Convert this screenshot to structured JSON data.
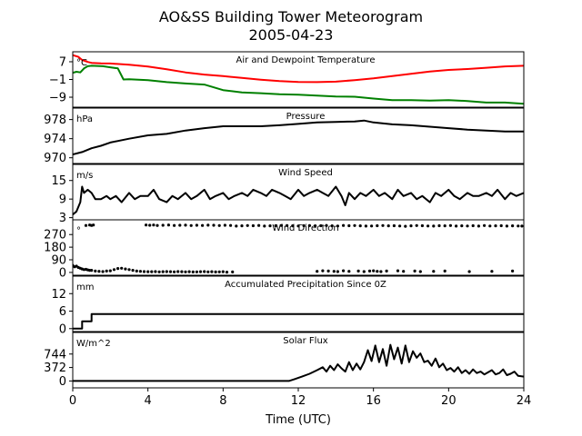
{
  "chart_data": {
    "type": "line",
    "title": "AO&SS Building Tower Meteorogram",
    "subtitle": "2005-04-23",
    "xlabel": "Time (UTC)",
    "xlim": [
      0,
      24
    ],
    "xticks": [
      0,
      4,
      8,
      12,
      16,
      20,
      24
    ],
    "panels": [
      {
        "id": "temp",
        "title": "Air and Dewpoint Temperature",
        "unit": "°C",
        "ylim": [
          -13.5,
          11.5
        ],
        "yticks": [
          7,
          -1,
          -9
        ],
        "yticklabels": [
          "7",
          "−1",
          "−9"
        ],
        "series": [
          {
            "color": "#ff0000",
            "x": [
              0,
              0.3,
              0.5,
              0.8,
              1.0,
              1.5,
              2.0,
              3.0,
              4.0,
              5.0,
              6.0,
              7.0,
              8.0,
              9.0,
              10.0,
              11.0,
              12.0,
              13.0,
              14.0,
              15.0,
              16.0,
              17.0,
              18.0,
              19.0,
              20.0,
              21.0,
              22.0,
              23.0,
              24.0
            ],
            "values": [
              10,
              9.2,
              7.8,
              6.9,
              6.5,
              6.3,
              6.2,
              5.7,
              4.8,
              3.6,
              2.2,
              1.2,
              0.5,
              -0.3,
              -1.1,
              -1.7,
              -2.1,
              -2.2,
              -2.0,
              -1.3,
              -0.5,
              0.5,
              1.6,
              2.6,
              3.3,
              3.7,
              4.3,
              4.9,
              5.2
            ]
          },
          {
            "color": "#008000",
            "x": [
              0,
              0.2,
              0.4,
              0.6,
              0.8,
              1.0,
              1.3,
              1.6,
              2.0,
              2.4,
              2.7,
              3.0,
              4.0,
              5.0,
              6.0,
              7.0,
              8.0,
              9.0,
              10.0,
              11.0,
              12.0,
              13.0,
              14.0,
              15.0,
              16.0,
              17.0,
              18.0,
              19.0,
              20.0,
              21.0,
              22.0,
              23.0,
              24.0
            ],
            "values": [
              2.0,
              2.5,
              2.2,
              4.0,
              5.0,
              5.2,
              5.1,
              5.0,
              4.5,
              4.0,
              -1.0,
              -0.9,
              -1.3,
              -2.2,
              -2.8,
              -3.3,
              -5.8,
              -6.8,
              -7.2,
              -7.7,
              -7.9,
              -8.3,
              -8.7,
              -8.8,
              -9.6,
              -10.3,
              -10.3,
              -10.5,
              -10.3,
              -10.7,
              -11.4,
              -11.4,
              -12.0
            ]
          }
        ]
      },
      {
        "id": "pressure",
        "title": "Pressure",
        "unit": "hPa",
        "ylim": [
          968.8,
          980.4
        ],
        "yticks": [
          978,
          974,
          970
        ],
        "yticklabels": [
          "978",
          "974",
          "970"
        ],
        "series": [
          {
            "color": "#000000",
            "x": [
              0,
              0.5,
              1,
              1.5,
              2,
              3,
              4,
              5,
              6,
              7,
              8,
              9,
              10,
              11,
              12,
              13,
              14,
              15,
              15.5,
              16,
              17,
              18,
              19,
              20,
              21,
              22,
              23,
              24
            ],
            "values": [
              970.7,
              971.2,
              972.0,
              972.5,
              973.2,
              974.0,
              974.7,
              975.0,
              975.7,
              976.2,
              976.6,
              976.6,
              976.6,
              976.8,
              977.1,
              977.4,
              977.5,
              977.6,
              977.8,
              977.4,
              977.0,
              976.8,
              976.5,
              976.2,
              975.9,
              975.7,
              975.5,
              975.5
            ]
          }
        ]
      },
      {
        "id": "wind-speed",
        "title": "Wind Speed",
        "unit": "m/s",
        "ylim": [
          2.3,
          20.2
        ],
        "yticks": [
          15,
          9,
          3
        ],
        "yticklabels": [
          "15",
          "9",
          "3"
        ],
        "series": [
          {
            "color": "#000000",
            "x": [
              0,
              0.2,
              0.4,
              0.5,
              0.6,
              0.8,
              1.0,
              1.2,
              1.5,
              1.8,
              2.0,
              2.3,
              2.6,
              3.0,
              3.3,
              3.6,
              4.0,
              4.3,
              4.6,
              5.0,
              5.3,
              5.6,
              6.0,
              6.3,
              6.6,
              7.0,
              7.3,
              7.6,
              8.0,
              8.3,
              8.6,
              9.0,
              9.3,
              9.6,
              10.0,
              10.3,
              10.6,
              11.0,
              11.3,
              11.6,
              12.0,
              12.3,
              12.6,
              13.0,
              13.3,
              13.6,
              14.0,
              14.3,
              14.5,
              14.7,
              15.0,
              15.3,
              15.6,
              16.0,
              16.3,
              16.6,
              17.0,
              17.3,
              17.6,
              18.0,
              18.3,
              18.6,
              19.0,
              19.3,
              19.6,
              20.0,
              20.3,
              20.6,
              21.0,
              21.3,
              21.6,
              22.0,
              22.3,
              22.6,
              23.0,
              23.3,
              23.6,
              24.0
            ],
            "values": [
              4,
              5,
              8,
              13,
              11,
              12,
              11,
              9,
              9,
              10,
              9,
              10,
              8,
              11,
              9,
              10,
              10,
              12,
              9,
              8,
              10,
              9,
              11,
              9,
              10,
              12,
              9,
              10,
              11,
              9,
              10,
              11,
              10,
              12,
              11,
              10,
              12,
              11,
              10,
              9,
              12,
              10,
              11,
              12,
              11,
              10,
              13,
              10,
              7,
              11,
              9,
              11,
              10,
              12,
              10,
              11,
              9,
              12,
              10,
              11,
              9,
              10,
              8,
              11,
              10,
              12,
              10,
              9,
              11,
              10,
              10,
              11,
              10,
              12,
              9,
              11,
              10,
              11
            ]
          }
        ]
      },
      {
        "id": "wind-direction",
        "title": "Wind Direction",
        "unit": "°",
        "ylim": [
          -20,
          375
        ],
        "yticks": [
          270,
          180,
          90,
          0
        ],
        "yticklabels": [
          "270",
          "180",
          "90",
          "0"
        ],
        "series": [
          {
            "color": "#000000",
            "mode": "points",
            "x": [
              0.0,
              0.1,
              0.2,
              0.3,
              0.4,
              0.5,
              0.6,
              0.7,
              0.8,
              0.9,
              1.0,
              1.2,
              1.4,
              1.6,
              1.8,
              2.0,
              2.2,
              2.4,
              2.6,
              2.8,
              3.0,
              3.2,
              3.4,
              3.6,
              3.8,
              4.0,
              4.2,
              4.4,
              4.6,
              4.8,
              5.0,
              5.2,
              5.4,
              5.6,
              5.8,
              6.0,
              6.2,
              6.4,
              6.6,
              6.8,
              7.0,
              7.2,
              7.4,
              7.6,
              7.8,
              8.0,
              8.2,
              8.5,
              13.0,
              13.3,
              13.6,
              13.9,
              14.1,
              14.4,
              14.7,
              15.2,
              15.5,
              15.8,
              16.0,
              16.2,
              16.4,
              16.7,
              17.3,
              17.6,
              18.2,
              18.5,
              19.2,
              19.8,
              21.1,
              22.3,
              23.4,
              0.7,
              0.9,
              1.0,
              1.1,
              3.9,
              4.1,
              4.3,
              4.5,
              4.8,
              5.1,
              5.4,
              5.7,
              6.0,
              6.3,
              6.6,
              6.9,
              7.2,
              7.5,
              7.8,
              8.1,
              8.4,
              8.7,
              9.0,
              9.3,
              9.6,
              9.9,
              10.2,
              10.5,
              10.8,
              11.1,
              11.4,
              11.7,
              12.0,
              12.3,
              12.6,
              12.9,
              13.2,
              13.5,
              13.8,
              14.1,
              14.4,
              14.7,
              15.0,
              15.3,
              15.6,
              15.9,
              16.2,
              16.5,
              16.8,
              17.1,
              17.4,
              17.7,
              18.0,
              18.3,
              18.6,
              18.9,
              19.2,
              19.5,
              19.8,
              20.1,
              20.4,
              20.7,
              21.0,
              21.3,
              21.6,
              21.9,
              22.2,
              22.5,
              22.8,
              23.1,
              23.4,
              23.7,
              23.9
            ],
            "values": [
              50,
              40,
              45,
              35,
              30,
              25,
              20,
              22,
              18,
              15,
              15,
              10,
              8,
              6,
              10,
              12,
              20,
              28,
              30,
              25,
              20,
              15,
              10,
              8,
              6,
              5,
              5,
              6,
              4,
              5,
              6,
              5,
              4,
              6,
              5,
              4,
              5,
              3,
              4,
              5,
              6,
              4,
              5,
              3,
              4,
              5,
              2,
              3,
              8,
              12,
              10,
              8,
              6,
              12,
              8,
              10,
              6,
              10,
              12,
              8,
              6,
              10,
              12,
              8,
              10,
              6,
              8,
              10,
              6,
              8,
              10,
              335,
              338,
              335,
              338,
              338,
              336,
              338,
              335,
              336,
              338,
              335,
              336,
              337,
              334,
              336,
              335,
              337,
              336,
              334,
              336,
              335,
              330,
              332,
              334,
              333,
              335,
              330,
              332,
              333,
              335,
              334,
              332,
              331,
              333,
              334,
              332,
              333,
              334,
              332,
              331,
              335,
              333,
              334,
              332,
              330,
              331,
              333,
              334,
              332,
              333,
              331,
              329,
              332,
              334,
              333,
              331,
              330,
              333,
              332,
              334,
              330,
              332,
              331,
              333,
              330,
              334,
              331,
              332,
              333,
              330,
              332,
              331,
              330
            ]
          }
        ]
      },
      {
        "id": "precip",
        "title": "Accumulated Precipitation Since 0Z",
        "unit": "mm",
        "ylim": [
          -1,
          18
        ],
        "yticks": [
          12,
          6,
          0
        ],
        "yticklabels": [
          "12",
          "6",
          "0"
        ],
        "series": [
          {
            "color": "#000000",
            "x": [
              0,
              0.5,
              0.5,
              1.0,
              1.0,
              24
            ],
            "values": [
              0,
              0,
              2.5,
              2.5,
              5.0,
              5.0
            ]
          }
        ]
      },
      {
        "id": "solar",
        "title": "Solar Flux",
        "unit": "W/m^2",
        "ylim": [
          -190,
          1340
        ],
        "yticks": [
          744,
          372,
          0
        ],
        "yticklabels": [
          "744",
          "372",
          "0"
        ],
        "series": [
          {
            "color": "#000000",
            "x": [
              0,
              6,
              11.5,
              11.8,
              12.2,
              12.6,
              13.0,
              13.3,
              13.5,
              13.7,
              13.9,
              14.1,
              14.3,
              14.5,
              14.7,
              14.9,
              15.1,
              15.3,
              15.5,
              15.7,
              15.9,
              16.1,
              16.3,
              16.5,
              16.7,
              16.9,
              17.1,
              17.3,
              17.5,
              17.7,
              17.9,
              18.1,
              18.3,
              18.5,
              18.7,
              18.9,
              19.1,
              19.3,
              19.5,
              19.7,
              19.9,
              20.1,
              20.3,
              20.5,
              20.7,
              20.9,
              21.1,
              21.3,
              21.5,
              21.7,
              21.9,
              22.1,
              22.3,
              22.5,
              22.7,
              22.9,
              23.1,
              23.3,
              23.5,
              23.7,
              24.0
            ],
            "values": [
              0,
              0,
              0,
              50,
              120,
              200,
              300,
              380,
              260,
              420,
              300,
              460,
              350,
              260,
              520,
              300,
              480,
              320,
              520,
              850,
              550,
              980,
              520,
              880,
              420,
              1000,
              600,
              920,
              480,
              980,
              520,
              820,
              640,
              760,
              520,
              560,
              420,
              620,
              380,
              480,
              300,
              360,
              260,
              380,
              220,
              300,
              200,
              320,
              220,
              260,
              180,
              240,
              300,
              180,
              220,
              320,
              160,
              200,
              260,
              140,
              120
            ]
          }
        ]
      }
    ]
  }
}
